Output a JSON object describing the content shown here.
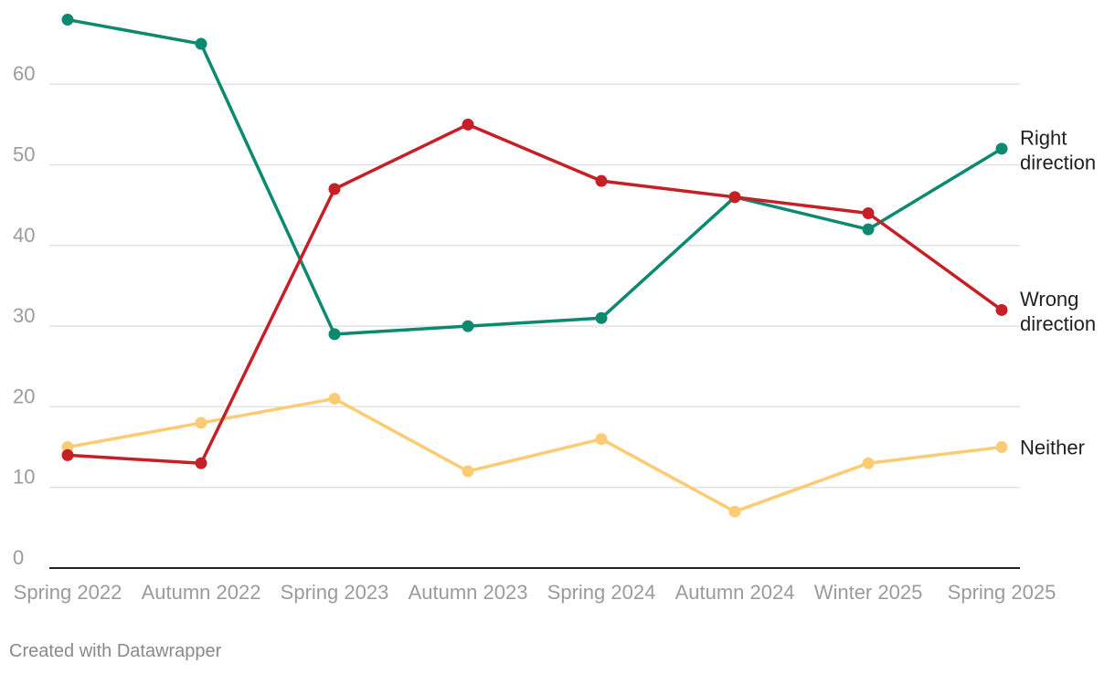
{
  "chart_data": {
    "type": "line",
    "categories": [
      "Spring 2022",
      "Autumn 2022",
      "Spring 2023",
      "Autumn 2023",
      "Spring 2024",
      "Autumn 2024",
      "Winter 2025",
      "Spring 2025"
    ],
    "series": [
      {
        "name": "Right direction",
        "label_lines": [
          "Right",
          "direction"
        ],
        "color": "#0b8a70",
        "values": [
          68,
          65,
          29,
          30,
          31,
          46,
          42,
          52
        ]
      },
      {
        "name": "Wrong direction",
        "label_lines": [
          "Wrong",
          "direction"
        ],
        "color": "#c62026",
        "values": [
          14,
          13,
          47,
          55,
          48,
          46,
          44,
          32
        ]
      },
      {
        "name": "Neither",
        "label_lines": [
          "Neither"
        ],
        "color": "#fdcb73",
        "values": [
          15,
          18,
          21,
          12,
          16,
          7,
          13,
          15
        ]
      }
    ],
    "yticks": [
      0,
      10,
      20,
      30,
      40,
      50,
      60
    ],
    "ylim": [
      0,
      68
    ],
    "grid": true,
    "legend": "direct labels at line ends"
  },
  "footer": {
    "credit": "Created with Datawrapper"
  }
}
